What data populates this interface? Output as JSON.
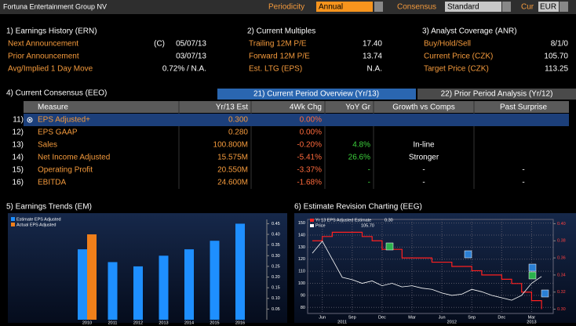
{
  "header": {
    "title": "Fortuna Entertainment Group NV",
    "periodicity_label": "Periodicity",
    "periodicity": "Annual",
    "consensus_label": "Consensus",
    "consensus": "Standard",
    "cur_label": "Cur",
    "cur": "EUR"
  },
  "earnings_history": {
    "title": "1) Earnings History (ERN)",
    "rows": [
      {
        "label": "Next Announcement",
        "prefix": "(C)",
        "value": "05/07/13"
      },
      {
        "label": "Prior Announcement",
        "value": "03/07/13"
      },
      {
        "label": "Avg/Implied 1 Day Move",
        "value": "0.72% / N.A."
      }
    ]
  },
  "multiples": {
    "title": "2) Current Multiples",
    "rows": [
      {
        "label": "Trailing 12M P/E",
        "value": "17.40"
      },
      {
        "label": "Forward 12M P/E",
        "value": "13.74"
      },
      {
        "label": "Est. LTG (EPS)",
        "value": "N.A."
      }
    ]
  },
  "coverage": {
    "title": "3) Analyst Coverage (ANR)",
    "rows": [
      {
        "label": "Buy/Hold/Sell",
        "value": "8/1/0"
      },
      {
        "label": "Current Price (CZK)",
        "value": "105.70"
      },
      {
        "label": "Target Price (CZK)",
        "value": "113.25"
      }
    ]
  },
  "consensus": {
    "title": "4) Current Consensus (EEO)",
    "tabs": [
      "21) Current Period Overview (Yr/13)",
      "22) Prior Period Analysis (Yr/12)"
    ],
    "columns": [
      "Measure",
      "Yr/13 Est",
      "4Wk Chg",
      "YoY Gr",
      "Growth vs Comps",
      "Past Surprise"
    ],
    "rows": [
      {
        "num": "11)",
        "measure": "EPS Adjusted+",
        "est": "0.300",
        "chg": "0.00%"
      },
      {
        "num": "12)",
        "measure": "EPS GAAP",
        "est": "0.280",
        "chg": "0.00%"
      },
      {
        "num": "13)",
        "measure": "Sales",
        "est": "100.800M",
        "chg": "-0.20%",
        "yoy": "4.8%",
        "comps": "In-line"
      },
      {
        "num": "14)",
        "measure": "Net Income Adjusted",
        "est": "15.575M",
        "chg": "-5.41%",
        "yoy": "26.6%",
        "comps": "Stronger"
      },
      {
        "num": "15)",
        "measure": "Operating Profit",
        "est": "20.550M",
        "chg": "-3.37%",
        "yoy": "-",
        "comps": "-",
        "surprise": "-"
      },
      {
        "num": "16)",
        "measure": "EBITDA",
        "est": "24.600M",
        "chg": "-1.68%",
        "yoy": "-",
        "comps": "-",
        "surprise": "-"
      }
    ]
  },
  "chart_data": [
    {
      "type": "bar",
      "title": "5) Earnings Trends (EM)",
      "categories": [
        "2010",
        "2011",
        "2012",
        "2013",
        "2014",
        "2015",
        "2016"
      ],
      "series": [
        {
          "name": "Estimate EPS Adjusted",
          "color": "#1e8fff",
          "values": [
            0.33,
            0.27,
            0.25,
            0.3,
            0.33,
            0.37,
            0.45
          ]
        },
        {
          "name": "Actual EPS Adjusted",
          "color": "#f07f1a",
          "values": [
            0.4,
            null,
            null,
            null,
            null,
            null,
            null
          ]
        }
      ],
      "ylim": [
        0,
        0.47
      ],
      "yticks": [
        0.05,
        {
          "value": 0.1,
          "label": "0.10"
        },
        0.15,
        {
          "value": 0.2,
          "label": "0.20"
        },
        0.25,
        {
          "value": 0.3,
          "label": "0.30"
        },
        0.35,
        {
          "value": 0.4,
          "label": "0.40"
        },
        0.45
      ]
    },
    {
      "type": "line",
      "title": "6) Estimate Revision Charting (EEG)",
      "categories": [
        null,
        "Jun",
        null,
        null,
        "Sep",
        null,
        null,
        "Dec",
        null,
        null,
        "Mar",
        null,
        null,
        "Jun",
        null,
        null,
        "Sep",
        null,
        null,
        "Dec",
        null,
        null,
        "Mar",
        null
      ],
      "year_labels": [
        "2011",
        "2012",
        "2013"
      ],
      "series": [
        {
          "name": "Yr 13 EPS Adjusted Estimate",
          "color": "#ff2020",
          "axis": "y2",
          "legend_value": {
            "value": 0.3,
            "label": "0.30"
          },
          "values": [
            0.38,
            0.385,
            0.39,
            0.39,
            0.39,
            0.385,
            0.38,
            0.37,
            0.37,
            0.36,
            0.36,
            0.36,
            0.355,
            0.355,
            0.35,
            0.35,
            0.345,
            0.34,
            0.34,
            0.335,
            0.33,
            0.32,
            0.31,
            0.3
          ]
        },
        {
          "name": "Price",
          "color": "#ffffff",
          "legend_value": {
            "value": 105.7,
            "label": "105.70"
          },
          "values": [
            125,
            135,
            120,
            105,
            103,
            100,
            102,
            98,
            100,
            97,
            98,
            96,
            95,
            92,
            90,
            91,
            95,
            93,
            90,
            88,
            86,
            90,
            100,
            105.7
          ]
        }
      ],
      "ylim": [
        75,
        153
      ],
      "yticks": [
        80,
        90,
        100,
        110,
        120,
        130,
        140,
        150
      ],
      "y2lim": [
        0.295,
        0.405
      ],
      "y2ticks": [
        {
          "value": 0.3,
          "label": "0.30"
        },
        0.32,
        0.34,
        0.36,
        0.38,
        {
          "value": 0.4,
          "label": "0.40"
        }
      ],
      "grid": true
    }
  ]
}
